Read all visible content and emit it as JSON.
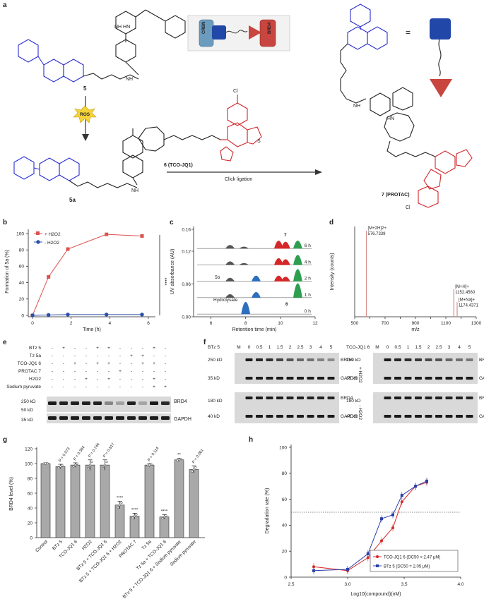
{
  "panels": {
    "a": "a",
    "b": "b",
    "c": "c",
    "d": "d",
    "e": "e",
    "f": "f",
    "g": "g",
    "h": "h"
  },
  "panel_a": {
    "compound_5": "5",
    "compound_5a": "5a",
    "compound_6_label": "6 (TCO-JQ1)",
    "compound_7_label": "7 (PROTAC)",
    "ros_label": "ROS",
    "click_label": "Click ligation",
    "crbn": "CRBN",
    "brd4": "BRD4",
    "equals": "=",
    "atom_labels": {
      "nh_hn": "NH HN",
      "o": "O",
      "n": "N",
      "nh": "NH",
      "h": "H",
      "b": "B",
      "cl": "Cl",
      "s": "S",
      "hn": "HN"
    },
    "colors": {
      "blue": "#2a2fd0",
      "red": "#d0262a",
      "crbn_blue": "#6b9bbd",
      "brd4_red": "#c9453f",
      "ligand_blue": "#2147a8"
    }
  },
  "chart_data": [
    {
      "panel": "b",
      "type": "line",
      "ylabel": "Formation of 5a (%)",
      "xlabel": "Time (h)",
      "xlim": [
        0,
        6
      ],
      "ylim": [
        0,
        100
      ],
      "xticks": [
        "0",
        "2",
        "4",
        "6"
      ],
      "yticks": [
        "0",
        "20",
        "40",
        "60",
        "80",
        "100"
      ],
      "series": [
        {
          "name": "+ H2O2",
          "color": "#d9534f",
          "x": [
            0,
            0.83,
            1.83,
            3.83,
            5.67
          ],
          "values": [
            0,
            47,
            81,
            99,
            97
          ]
        },
        {
          "name": "- H2O2",
          "color": "#2c4fa8",
          "x": [
            0,
            0.83,
            1.83,
            3.83,
            5.67
          ],
          "values": [
            0,
            0.5,
            1,
            1,
            1
          ]
        }
      ],
      "significance": "****",
      "legend": "top-left"
    },
    {
      "panel": "c",
      "type": "line",
      "ylabel": "UV absorbance (AU)",
      "xlabel": "Retention time (min)",
      "xlim": [
        5,
        12
      ],
      "ylim": [
        0,
        0.16
      ],
      "xticks": [
        "6",
        "8",
        "10",
        "12"
      ],
      "yticks": [
        "0.00",
        "0.06",
        "0.12",
        "0.16"
      ],
      "traces": [
        "0 h",
        "1 h",
        "2 h",
        "4 h",
        "6 h"
      ],
      "annotations": [
        "Hydrolysate",
        "5b",
        "6",
        "7"
      ]
    },
    {
      "panel": "d",
      "type": "line",
      "ylabel": "Intensity (counts)",
      "xlabel": "m/z",
      "xlim": [
        500,
        1300
      ],
      "xticks": [
        "500",
        "600",
        "700",
        "800",
        "900",
        "1000",
        "1100",
        "1200",
        "1300"
      ],
      "peaks": [
        {
          "mz": 576.7339,
          "rel": 1.0,
          "label_line1": "[M+2H]2+",
          "label_line2": "576.7339"
        },
        {
          "mz": 1152.456,
          "rel": 0.32,
          "label_line1": "[M+H]+",
          "label_line2": "1152.4560"
        },
        {
          "mz": 1174.4371,
          "rel": 0.17,
          "label_line1": "[M+Na]+",
          "label_line2": "1174.4371"
        }
      ]
    },
    {
      "panel": "g",
      "type": "bar",
      "ylabel": "BRD4 level (%)",
      "ylim": [
        0,
        120
      ],
      "yticks": [
        "0",
        "20",
        "40",
        "60",
        "80",
        "100",
        "120"
      ],
      "categories": [
        "Control",
        "BTz 5",
        "TCO-JQ1 6",
        "H2O2",
        "BTz 5 + TCO-JQ1 6",
        "BTz 5 + TCO-JQ1 6 + H2O2",
        "PROTAC 7",
        "Tz 5a",
        "Tz 5a + TCO-JQ1 6",
        "BTz 5 + TCO-JQ1 6 + Sodium pyruvate",
        "Sodium pyruvate"
      ],
      "values": [
        100,
        96,
        98,
        98,
        98,
        44,
        29,
        98,
        28,
        105,
        92
      ],
      "errors": [
        1,
        3,
        3,
        7,
        7,
        5,
        4,
        2,
        3,
        2,
        5
      ],
      "pvalues": [
        "",
        "P = 0.073",
        "P = 0.384",
        "P = 0.746",
        "P = 0.817",
        "****",
        "****",
        "P = 0.114",
        "****",
        "**",
        "P = 0.061"
      ]
    },
    {
      "panel": "h",
      "type": "line",
      "ylabel": "Degradation rate (%)",
      "xlabel": "Log10(compound)(nM)",
      "xlim": [
        2.5,
        4.0
      ],
      "ylim": [
        0,
        100
      ],
      "xticks": [
        "2.5",
        "3.0",
        "3.5",
        "4.0"
      ],
      "yticks": [
        "0",
        "20",
        "40",
        "60",
        "80",
        "100"
      ],
      "dotted_line": 50,
      "series": [
        {
          "name": "TCO-JQ1 6 (DC50 = 2.47 μM)",
          "color": "#d62728",
          "x": [
            2.7,
            3.0,
            3.18,
            3.3,
            3.4,
            3.48,
            3.6,
            3.7
          ],
          "values": [
            8,
            5,
            15,
            28,
            38,
            58,
            70,
            73
          ]
        },
        {
          "name": "BTz 5 (DC50 = 2.05 μM)",
          "color": "#2c3ea8",
          "x": [
            2.7,
            3.0,
            3.18,
            3.3,
            3.4,
            3.48,
            3.6,
            3.7
          ],
          "values": [
            5,
            6,
            18,
            45,
            48,
            63,
            70,
            74
          ]
        }
      ],
      "legend": "bottom-right"
    }
  ],
  "panel_e": {
    "row_labels": [
      "BTz 5",
      "Tz 5a",
      "TCO-JQ1 6",
      "PROTAC 7",
      "H2O2",
      "Sodium pyruvate"
    ],
    "matrix": [
      [
        "-",
        "+",
        "-",
        "-",
        "+",
        "+",
        "-",
        "-",
        "-",
        "+",
        "-"
      ],
      [
        "-",
        "-",
        "-",
        "-",
        "-",
        "-",
        "-",
        "+",
        "+",
        "-",
        "-"
      ],
      [
        "-",
        "-",
        "+",
        "-",
        "+",
        "+",
        "-",
        "-",
        "+",
        "+",
        "-"
      ],
      [
        "-",
        "-",
        "-",
        "-",
        "-",
        "-",
        "+",
        "-",
        "-",
        "-",
        "-"
      ],
      [
        "-",
        "-",
        "-",
        "+",
        "-",
        "+",
        "-",
        "-",
        "-",
        "+",
        "-"
      ],
      [
        "-",
        "-",
        "-",
        "-",
        "-",
        "-",
        "-",
        "-",
        "-",
        "+",
        "+"
      ]
    ],
    "brd4_intensity": [
      1,
      0.96,
      0.98,
      0.98,
      0.98,
      0.44,
      0.29,
      0.98,
      0.28,
      1.0,
      0.92
    ],
    "mw_labels": [
      "250 kD",
      "50 kD",
      "35 kD"
    ],
    "band_labels": [
      "BRD4",
      "GAPDH"
    ]
  },
  "panel_f": {
    "left_header": "BTz 5",
    "right_header": "TCO-JQ1 6",
    "lanes": [
      "M",
      "0",
      "0.5",
      "1",
      "1.5",
      "2",
      "2.5",
      "3",
      "4",
      "5"
    ],
    "mw_top": [
      "250 kD",
      "35 kD"
    ],
    "mw_bottom": [
      "180 kD",
      "40 kD"
    ],
    "band_labels": [
      "BRD4",
      "GAPDH"
    ],
    "cond_plus": "+ H2O2",
    "cond_minus": "- H2O2",
    "left_plus": [
      1,
      0.95,
      0.9,
      0.8,
      0.7,
      0.6,
      0.55,
      0.45,
      0.4
    ],
    "right_plus": [
      1,
      0.95,
      0.9,
      0.85,
      0.75,
      0.7,
      0.6,
      0.55,
      0.5
    ],
    "left_minus": [
      1,
      1,
      1,
      1,
      0.98,
      0.98,
      0.97,
      0.97,
      0.96
    ],
    "right_minus": [
      1,
      1,
      1,
      0.99,
      0.98,
      0.98,
      0.97,
      0.97,
      0.96
    ]
  }
}
